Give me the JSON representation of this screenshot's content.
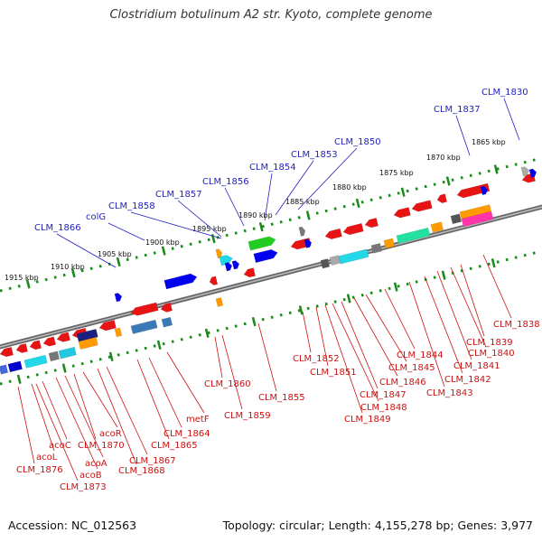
{
  "header": {
    "title": "Clostridium botulinum A2 str. Kyoto, complete genome"
  },
  "footer": {
    "accession": "Accession: NC_012563",
    "topology": "Topology: circular; Length: 4,155,278 bp; Genes: 3,977"
  },
  "map": {
    "kbp_ticks": [
      "1915 kbp",
      "1910 kbp",
      "1905 kbp",
      "1900 kbp",
      "1895 kbp",
      "1890 kbp",
      "1885 kbp",
      "1880 kbp",
      "1875 kbp",
      "1870 kbp",
      "1865 kbp"
    ],
    "forward_labels": [
      "CLM_1866",
      "colG",
      "CLM_1858",
      "CLM_1857",
      "CLM_1856",
      "CLM_1854",
      "CLM_1853",
      "CLM_1850",
      "CLM_1837",
      "CLM_1830"
    ],
    "reverse_labels": [
      "CLM_1876",
      "acoL",
      "acoC",
      "acoB",
      "CLM_1873",
      "acoA",
      "CLM_1870",
      "acoR",
      "CLM_1868",
      "CLM_1867",
      "CLM_1865",
      "CLM_1864",
      "metF",
      "CLM_1860",
      "CLM_1859",
      "CLM_1855",
      "CLM_1852",
      "CLM_1851",
      "CLM_1848",
      "CLM_1849",
      "CLM_1847",
      "CLM_1846",
      "CLM_1845",
      "CLM_1844",
      "CLM_1843",
      "CLM_1842",
      "CLM_1841",
      "CLM_1840",
      "CLM_1839",
      "CLM_1838"
    ]
  },
  "colors": {
    "forward_label": "#1f1fbf",
    "reverse_label": "#cc1111",
    "tick_green": "#1a8a1a",
    "backbone": "#7a7a7a"
  }
}
